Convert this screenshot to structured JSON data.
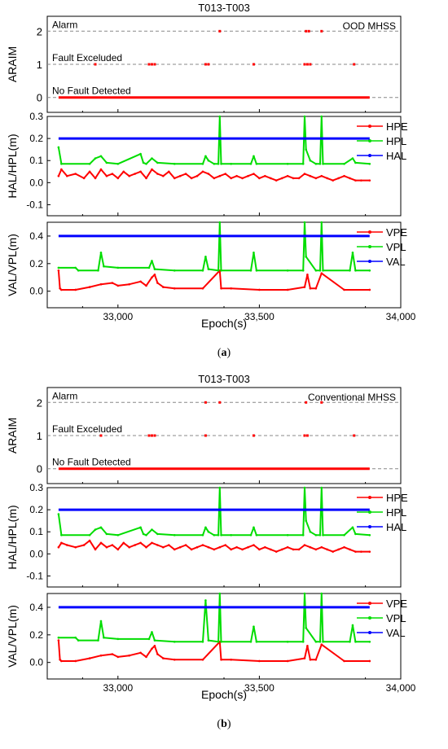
{
  "colors": {
    "hpe": "#ff0000",
    "hpl": "#00dd00",
    "hal": "#0000ff",
    "axis": "#000000",
    "dash": "#888888"
  },
  "x_axis": {
    "label": "Epoch(s)",
    "ticks": [
      33000,
      33500,
      34000
    ],
    "tick_labels": [
      "33,000",
      "33,500",
      "34,000"
    ],
    "xlim": [
      32750,
      34000
    ]
  },
  "figures": [
    {
      "title": "T013-T003",
      "caption_letter": "a",
      "caption_open": "(",
      "caption_close": ")",
      "mode_label": "OOD MHSS",
      "araim_ylabel": "ARAIM",
      "araim_levels": [
        {
          "value": 2,
          "label": "Alarm"
        },
        {
          "value": 1,
          "label": "Fault Exceluded"
        },
        {
          "value": 0,
          "label": "No Fault Detected"
        }
      ],
      "araim_events": [
        {
          "epoch": 33360,
          "level": 2
        },
        {
          "epoch": 33665,
          "level": 2
        },
        {
          "epoch": 33675,
          "level": 2
        },
        {
          "epoch": 33720,
          "level": 2
        },
        {
          "epoch": 32920,
          "level": 1
        },
        {
          "epoch": 33110,
          "level": 1
        },
        {
          "epoch": 33120,
          "level": 1
        },
        {
          "epoch": 33130,
          "level": 1
        },
        {
          "epoch": 33310,
          "level": 1
        },
        {
          "epoch": 33320,
          "level": 1
        },
        {
          "epoch": 33480,
          "level": 1
        },
        {
          "epoch": 33660,
          "level": 1
        },
        {
          "epoch": 33670,
          "level": 1
        },
        {
          "epoch": 33680,
          "level": 1
        },
        {
          "epoch": 33835,
          "level": 1
        }
      ]
    },
    {
      "title": "T013-T003",
      "caption_letter": "b",
      "caption_open": "(",
      "caption_close": ")",
      "mode_label": "Conventional MHSS",
      "araim_ylabel": "ARAIM",
      "araim_levels": [
        {
          "value": 2,
          "label": "Alarm"
        },
        {
          "value": 1,
          "label": "Fault Exceluded"
        },
        {
          "value": 0,
          "label": "No Fault Detected"
        }
      ],
      "araim_events": [
        {
          "epoch": 33310,
          "level": 2
        },
        {
          "epoch": 33360,
          "level": 2
        },
        {
          "epoch": 33665,
          "level": 2
        },
        {
          "epoch": 33720,
          "level": 2
        },
        {
          "epoch": 32940,
          "level": 1
        },
        {
          "epoch": 33110,
          "level": 1
        },
        {
          "epoch": 33120,
          "level": 1
        },
        {
          "epoch": 33130,
          "level": 1
        },
        {
          "epoch": 33310,
          "level": 1
        },
        {
          "epoch": 33480,
          "level": 1
        },
        {
          "epoch": 33660,
          "level": 1
        },
        {
          "epoch": 33670,
          "level": 1
        },
        {
          "epoch": 33835,
          "level": 1
        }
      ]
    }
  ],
  "chart_data": [
    {
      "type": "line",
      "panel": "horizontal",
      "figure": "a",
      "ylabel": "HAL/HPL(m)",
      "ylim": [
        -0.15,
        0.3
      ],
      "yticks": [
        -0.1,
        0.0,
        0.1,
        0.2,
        0.3
      ],
      "ytick_labels": [
        "-0.1",
        "0.0",
        "0.1",
        "0.2",
        "0.3"
      ],
      "series": [
        {
          "name": "HPE",
          "color": "#ff0000",
          "x": [
            32790,
            32800,
            32820,
            32850,
            32880,
            32900,
            32920,
            32940,
            32960,
            32980,
            33000,
            33020,
            33040,
            33060,
            33080,
            33100,
            33120,
            33140,
            33160,
            33180,
            33200,
            33220,
            33240,
            33260,
            33280,
            33300,
            33320,
            33340,
            33360,
            33380,
            33400,
            33420,
            33440,
            33460,
            33480,
            33500,
            33520,
            33540,
            33560,
            33580,
            33600,
            33620,
            33640,
            33660,
            33680,
            33700,
            33720,
            33740,
            33760,
            33780,
            33800,
            33820,
            33840,
            33860,
            33890
          ],
          "y": [
            0.03,
            0.06,
            0.03,
            0.04,
            0.02,
            0.05,
            0.02,
            0.06,
            0.03,
            0.04,
            0.02,
            0.05,
            0.03,
            0.04,
            0.05,
            0.02,
            0.06,
            0.04,
            0.03,
            0.05,
            0.02,
            0.03,
            0.04,
            0.02,
            0.03,
            0.05,
            0.04,
            0.02,
            0.03,
            0.04,
            0.02,
            0.03,
            0.02,
            0.03,
            0.04,
            0.02,
            0.03,
            0.02,
            0.01,
            0.02,
            0.03,
            0.02,
            0.02,
            0.04,
            0.03,
            0.02,
            0.03,
            0.02,
            0.01,
            0.02,
            0.03,
            0.02,
            0.01,
            0.01,
            0.01
          ]
        },
        {
          "name": "HPL",
          "color": "#00dd00",
          "x": [
            32790,
            32800,
            32900,
            32920,
            32940,
            32960,
            33000,
            33080,
            33090,
            33100,
            33120,
            33140,
            33200,
            33300,
            33310,
            33320,
            33340,
            33355,
            33360,
            33365,
            33400,
            33470,
            33480,
            33490,
            33600,
            33655,
            33660,
            33665,
            33680,
            33700,
            33715,
            33720,
            33725,
            33800,
            33830,
            33840,
            33890
          ],
          "y": [
            0.16,
            0.085,
            0.085,
            0.11,
            0.12,
            0.09,
            0.085,
            0.13,
            0.09,
            0.085,
            0.11,
            0.09,
            0.085,
            0.085,
            0.12,
            0.1,
            0.085,
            0.085,
            0.3,
            0.085,
            0.085,
            0.085,
            0.12,
            0.085,
            0.085,
            0.085,
            0.3,
            0.15,
            0.1,
            0.085,
            0.085,
            0.3,
            0.085,
            0.085,
            0.11,
            0.09,
            0.085
          ]
        },
        {
          "name": "HAL",
          "color": "#0000ff",
          "x": [
            32790,
            33890
          ],
          "y": [
            0.2,
            0.2
          ]
        }
      ]
    },
    {
      "type": "line",
      "panel": "vertical",
      "figure": "a",
      "ylabel": "VAL/VPL(m)",
      "ylim": [
        -0.12,
        0.5
      ],
      "yticks": [
        0.0,
        0.2,
        0.4
      ],
      "ytick_labels": [
        "0.0",
        "0.2",
        "0.4"
      ],
      "series": [
        {
          "name": "VPE",
          "color": "#ff0000",
          "x": [
            32790,
            32795,
            32800,
            32850,
            32900,
            32940,
            32980,
            33000,
            33040,
            33080,
            33100,
            33120,
            33130,
            33140,
            33160,
            33200,
            33300,
            33360,
            33365,
            33400,
            33500,
            33600,
            33660,
            33670,
            33680,
            33700,
            33720,
            33800,
            33890
          ],
          "y": [
            0.15,
            0.02,
            0.01,
            0.01,
            0.03,
            0.05,
            0.06,
            0.04,
            0.05,
            0.07,
            0.04,
            0.1,
            0.12,
            0.06,
            0.03,
            0.02,
            0.02,
            0.15,
            0.02,
            0.02,
            0.01,
            0.01,
            0.03,
            0.12,
            0.02,
            0.02,
            0.13,
            0.01,
            0.01
          ]
        },
        {
          "name": "VPL",
          "color": "#00dd00",
          "x": [
            32790,
            32850,
            32860,
            32930,
            32940,
            32950,
            33000,
            33110,
            33120,
            33130,
            33200,
            33300,
            33310,
            33320,
            33355,
            33360,
            33365,
            33470,
            33480,
            33490,
            33600,
            33655,
            33660,
            33665,
            33700,
            33715,
            33720,
            33725,
            33820,
            33830,
            33840,
            33890
          ],
          "y": [
            0.17,
            0.17,
            0.15,
            0.15,
            0.28,
            0.18,
            0.17,
            0.17,
            0.22,
            0.16,
            0.15,
            0.15,
            0.25,
            0.16,
            0.15,
            0.5,
            0.15,
            0.15,
            0.28,
            0.15,
            0.15,
            0.15,
            0.5,
            0.25,
            0.15,
            0.15,
            0.5,
            0.15,
            0.15,
            0.28,
            0.15,
            0.15
          ]
        },
        {
          "name": "VAL",
          "color": "#0000ff",
          "x": [
            32790,
            33890
          ],
          "y": [
            0.4,
            0.4
          ]
        }
      ]
    },
    {
      "type": "line",
      "panel": "horizontal",
      "figure": "b",
      "ylabel": "HAL/HPL(m)",
      "ylim": [
        -0.15,
        0.3
      ],
      "yticks": [
        -0.1,
        0.0,
        0.1,
        0.2,
        0.3
      ],
      "ytick_labels": [
        "-0.1",
        "0.0",
        "0.1",
        "0.2",
        "0.3"
      ],
      "series": [
        {
          "name": "HPE",
          "color": "#ff0000",
          "x": [
            32790,
            32800,
            32820,
            32850,
            32880,
            32900,
            32920,
            32940,
            32960,
            32980,
            33000,
            33020,
            33040,
            33060,
            33080,
            33100,
            33120,
            33140,
            33160,
            33180,
            33200,
            33220,
            33240,
            33260,
            33280,
            33300,
            33320,
            33340,
            33360,
            33380,
            33400,
            33420,
            33440,
            33460,
            33480,
            33500,
            33520,
            33540,
            33560,
            33580,
            33600,
            33620,
            33640,
            33660,
            33680,
            33700,
            33720,
            33740,
            33760,
            33780,
            33800,
            33820,
            33840,
            33860,
            33890
          ],
          "y": [
            0.03,
            0.05,
            0.04,
            0.03,
            0.04,
            0.06,
            0.02,
            0.05,
            0.03,
            0.04,
            0.02,
            0.05,
            0.03,
            0.04,
            0.05,
            0.03,
            0.05,
            0.04,
            0.03,
            0.04,
            0.02,
            0.03,
            0.04,
            0.02,
            0.03,
            0.04,
            0.03,
            0.02,
            0.03,
            0.04,
            0.02,
            0.03,
            0.02,
            0.03,
            0.04,
            0.02,
            0.03,
            0.02,
            0.01,
            0.02,
            0.03,
            0.02,
            0.02,
            0.04,
            0.03,
            0.02,
            0.03,
            0.02,
            0.01,
            0.02,
            0.03,
            0.02,
            0.01,
            0.01,
            0.01
          ]
        },
        {
          "name": "HPL",
          "color": "#00dd00",
          "x": [
            32790,
            32800,
            32900,
            32920,
            32940,
            32960,
            33000,
            33080,
            33090,
            33100,
            33120,
            33140,
            33200,
            33300,
            33310,
            33320,
            33340,
            33355,
            33360,
            33365,
            33400,
            33470,
            33480,
            33490,
            33600,
            33655,
            33660,
            33665,
            33680,
            33700,
            33715,
            33720,
            33725,
            33800,
            33830,
            33840,
            33890
          ],
          "y": [
            0.18,
            0.085,
            0.085,
            0.11,
            0.12,
            0.09,
            0.085,
            0.12,
            0.09,
            0.085,
            0.11,
            0.09,
            0.085,
            0.085,
            0.12,
            0.1,
            0.085,
            0.085,
            0.3,
            0.085,
            0.085,
            0.085,
            0.12,
            0.085,
            0.085,
            0.085,
            0.3,
            0.15,
            0.1,
            0.085,
            0.085,
            0.3,
            0.085,
            0.085,
            0.12,
            0.09,
            0.085
          ]
        },
        {
          "name": "HAL",
          "color": "#0000ff",
          "x": [
            32790,
            33890
          ],
          "y": [
            0.2,
            0.2
          ]
        }
      ]
    },
    {
      "type": "line",
      "panel": "vertical",
      "figure": "b",
      "ylabel": "VAL/VPL(m)",
      "ylim": [
        -0.12,
        0.5
      ],
      "yticks": [
        0.0,
        0.2,
        0.4
      ],
      "ytick_labels": [
        "0.0",
        "0.2",
        "0.4"
      ],
      "series": [
        {
          "name": "VPE",
          "color": "#ff0000",
          "x": [
            32790,
            32795,
            32800,
            32850,
            32900,
            32940,
            32980,
            33000,
            33040,
            33080,
            33100,
            33120,
            33130,
            33140,
            33160,
            33200,
            33300,
            33360,
            33365,
            33400,
            33500,
            33600,
            33660,
            33670,
            33680,
            33700,
            33720,
            33800,
            33890
          ],
          "y": [
            0.16,
            0.02,
            0.01,
            0.01,
            0.03,
            0.05,
            0.06,
            0.04,
            0.05,
            0.07,
            0.04,
            0.1,
            0.12,
            0.06,
            0.03,
            0.02,
            0.02,
            0.15,
            0.02,
            0.02,
            0.01,
            0.01,
            0.03,
            0.12,
            0.02,
            0.02,
            0.13,
            0.01,
            0.01
          ]
        },
        {
          "name": "VPL",
          "color": "#00dd00",
          "x": [
            32790,
            32850,
            32860,
            32930,
            32940,
            32950,
            33000,
            33110,
            33120,
            33130,
            33200,
            33300,
            33310,
            33320,
            33355,
            33360,
            33365,
            33470,
            33480,
            33490,
            33600,
            33655,
            33660,
            33665,
            33700,
            33715,
            33720,
            33725,
            33820,
            33830,
            33840,
            33890
          ],
          "y": [
            0.18,
            0.18,
            0.16,
            0.16,
            0.3,
            0.18,
            0.17,
            0.17,
            0.22,
            0.16,
            0.15,
            0.15,
            0.45,
            0.16,
            0.15,
            0.5,
            0.15,
            0.15,
            0.26,
            0.15,
            0.15,
            0.15,
            0.5,
            0.25,
            0.15,
            0.15,
            0.5,
            0.15,
            0.15,
            0.27,
            0.15,
            0.15
          ]
        },
        {
          "name": "VAL",
          "color": "#0000ff",
          "x": [
            32790,
            33890
          ],
          "y": [
            0.4,
            0.4
          ]
        }
      ]
    }
  ]
}
